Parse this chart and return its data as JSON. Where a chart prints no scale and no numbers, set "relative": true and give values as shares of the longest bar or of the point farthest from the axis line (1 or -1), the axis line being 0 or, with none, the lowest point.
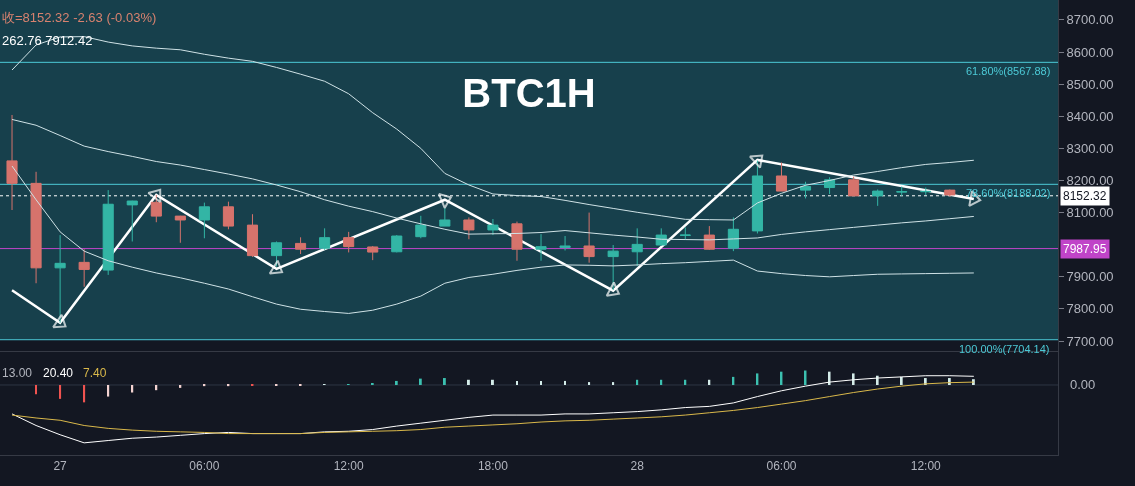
{
  "chart_data": [
    {
      "type": "candlestick",
      "title": "BTC1H",
      "annotations": [
        "收=8152.32 -2.63 (-0.03%)",
        "262.76 7912.42"
      ],
      "categories": [
        null,
        null,
        null,
        null,
        null,
        null,
        null,
        null,
        null,
        null,
        null,
        null,
        null,
        null,
        null,
        null,
        null,
        null,
        null,
        null,
        null,
        null,
        null,
        null,
        null,
        null,
        null,
        null,
        null,
        null,
        null,
        null,
        null,
        null,
        null,
        null,
        null,
        null,
        null,
        null,
        null,
        null,
        null,
        null
      ],
      "ohlc": [
        [
          8261,
          8404,
          8108,
          8191
        ],
        [
          8191,
          8227,
          7880,
          7928
        ],
        [
          7928,
          8030,
          7757,
          7942
        ],
        [
          7945,
          7986,
          7869,
          7923
        ],
        [
          7921,
          8170,
          7906,
          8126
        ],
        [
          8124,
          8137,
          8010,
          8136
        ],
        [
          8132,
          8155,
          8070,
          8089
        ],
        [
          8089,
          8090,
          8006,
          8077
        ],
        [
          8077,
          8131,
          8020,
          8118
        ],
        [
          8118,
          8134,
          8048,
          8058
        ],
        [
          8061,
          8095,
          7962,
          7966
        ],
        [
          7966,
          8010,
          7932,
          8006
        ],
        [
          8004,
          8023,
          7971,
          7986
        ],
        [
          7989,
          8051,
          7984,
          8022
        ],
        [
          8022,
          8040,
          7976,
          7994
        ],
        [
          7993,
          7996,
          7952,
          7977
        ],
        [
          7978,
          8030,
          7976,
          8027
        ],
        [
          8025,
          8090,
          8020,
          8061
        ],
        [
          8058,
          8115,
          8058,
          8077
        ],
        [
          8077,
          8085,
          8017,
          8046
        ],
        [
          8046,
          8080,
          8030,
          8061
        ],
        [
          8065,
          8072,
          7950,
          7986
        ],
        [
          7986,
          8033,
          7950,
          7994
        ],
        [
          7991,
          8027,
          7982,
          7996
        ],
        [
          7996,
          8100,
          7944,
          7963
        ],
        [
          7963,
          7999,
          7859,
          7980
        ],
        [
          7978,
          8051,
          7934,
          8001
        ],
        [
          7999,
          8051,
          7996,
          8030
        ],
        [
          8029,
          8054,
          8015,
          8030
        ],
        [
          8030,
          8058,
          7984,
          7986
        ],
        [
          7989,
          8085,
          7980,
          8048
        ],
        [
          8043,
          8262,
          8035,
          8214
        ],
        [
          8214,
          8256,
          8167,
          8167
        ],
        [
          8170,
          8196,
          8144,
          8181
        ],
        [
          8178,
          8210,
          8158,
          8202
        ],
        [
          8202,
          8212,
          8152,
          8152
        ],
        [
          8152,
          8172,
          8121,
          8167
        ],
        [
          8164,
          8181,
          8152,
          8165
        ],
        [
          8165,
          8178,
          8155,
          8166
        ],
        [
          8170,
          8172,
          8150,
          8155
        ],
        null,
        null,
        null,
        null
      ],
      "colors": [
        "#d6736c",
        "#d6736c",
        "#33b5a5",
        "#d6736c",
        "#33b5a5",
        "#33b5a5",
        "#d6736c",
        "#d6736c",
        "#33b5a5",
        "#d6736c",
        "#d6736c",
        "#33b5a5",
        "#d6736c",
        "#33b5a5",
        "#d6736c",
        "#d6736c",
        "#33b5a5",
        "#33b5a5",
        "#33b5a5",
        "#d6736c",
        "#33b5a5",
        "#d6736c",
        "#33b5a5",
        "#33b5a5",
        "#d6736c",
        "#33b5a5",
        "#33b5a5",
        "#33b5a5",
        "#33b5a5",
        "#d6736c",
        "#33b5a5",
        "#33b5a5",
        "#d6736c",
        "#33b5a5",
        "#33b5a5",
        "#d6736c",
        "#33b5a5",
        "#33b5a5",
        "#33b5a5",
        "#d6736c",
        null,
        null,
        null,
        null
      ],
      "series": [
        {
          "type": "line",
          "color": "#cfe2e6",
          "values": [
            8544,
            8622,
            8647,
            8648,
            8631,
            8619,
            8612,
            8607,
            8593,
            8581,
            8571,
            8552,
            8531,
            8509,
            8470,
            8411,
            8360,
            8300,
            8222,
            8186,
            8158,
            8153,
            8150,
            8138,
            8125,
            8113,
            8101,
            8090,
            8079,
            8078,
            8077,
            8130,
            8160,
            8185,
            8200,
            8217,
            8228,
            8240,
            8250,
            8256,
            8263,
            null,
            null,
            null
          ]
        },
        {
          "type": "line",
          "color": "#cfe2e6",
          "values": [
            8390,
            8372,
            8340,
            8307,
            8290,
            8275,
            8259,
            8248,
            8234,
            8220,
            8205,
            8186,
            8165,
            8140,
            8120,
            8103,
            8083,
            8065,
            8048,
            8033,
            8034,
            8035,
            8038,
            8044,
            8037,
            8030,
            8024,
            8017,
            8016,
            8015,
            8018,
            8021,
            8032,
            8040,
            8047,
            8054,
            8061,
            8068,
            8074,
            8081,
            8088,
            null,
            null,
            null
          ]
        },
        {
          "type": "line",
          "color": "#cfe2e6",
          "values": [
            8245,
            8140,
            8040,
            7980,
            7950,
            7930,
            7912,
            7897,
            7880,
            7862,
            7838,
            7815,
            7799,
            7792,
            7786,
            7796,
            7815,
            7840,
            7880,
            7898,
            7908,
            7920,
            7930,
            7937,
            7936,
            7934,
            7937,
            7941,
            7944,
            7948,
            7952,
            7918,
            7910,
            7904,
            7900,
            7904,
            7908,
            7909,
            7910,
            7911,
            7912,
            null,
            null,
            null
          ]
        },
        {
          "type": "line",
          "color": "#ffffff",
          "marker": "triangle",
          "values": [
            7858,
            null,
            7757,
            null,
            null,
            null,
            8155,
            null,
            null,
            null,
            null,
            7925,
            null,
            null,
            null,
            null,
            null,
            null,
            8140,
            null,
            null,
            null,
            null,
            null,
            null,
            7857,
            null,
            null,
            null,
            null,
            null,
            8264,
            null,
            null,
            null,
            null,
            null,
            null,
            null,
            null,
            8142,
            null,
            null,
            null
          ]
        }
      ],
      "ylim": [
        7669,
        8762
      ],
      "yticks": [
        {
          "value": 7700,
          "label": "7700.00"
        },
        {
          "value": 7800,
          "label": "7800.00"
        },
        {
          "value": 7900,
          "label": "7900.00"
        },
        7987.95,
        {
          "value": 8100,
          "label": "8100.00"
        },
        8152.32,
        {
          "value": 8200,
          "label": "8200.00"
        },
        {
          "value": 8300,
          "label": "8300.00"
        },
        {
          "value": 8400,
          "label": "8400.00"
        },
        {
          "value": 8500,
          "label": "8500.00"
        },
        {
          "value": 8600,
          "label": "8600.00"
        },
        {
          "value": 8700,
          "label": "8700.00"
        }
      ],
      "ref_lines": [
        {
          "axis": "y",
          "value": 8567.88,
          "label": "61.80%(8567.88)",
          "color": "#4cc9d6"
        },
        {
          "axis": "y",
          "value": 8188.02,
          "label": "78.60%(8188.02)",
          "color": "#4cc9d6"
        },
        {
          "axis": "y",
          "value": 7704.14,
          "label": "100.00%(7704.14)",
          "color": "#4cc9d6"
        },
        {
          "axis": "y",
          "value": 7987.95,
          "color": "#c044c8"
        },
        {
          "axis": "y",
          "value": 8152.32,
          "color": "#ffffff",
          "line_style": "dotted"
        }
      ],
      "bands": [
        {
          "axis": "y",
          "from": 7704.14,
          "to": 8762,
          "color": "#17404c"
        }
      ]
    },
    {
      "type": "bar",
      "relative": true,
      "annotations": [
        "13.00",
        "20.40",
        "7.40"
      ],
      "categories": [
        null,
        null,
        "27",
        null,
        null,
        null,
        null,
        null,
        "06:00",
        null,
        null,
        null,
        null,
        null,
        "12:00",
        null,
        null,
        null,
        null,
        null,
        "18:00",
        null,
        null,
        null,
        null,
        null,
        "28",
        null,
        null,
        null,
        null,
        null,
        "06:00",
        null,
        null,
        null,
        null,
        null,
        "12:00",
        null,
        null,
        null,
        null,
        null
      ],
      "series": [
        {
          "values": [
            null,
            -0.16,
            -0.24,
            -0.3,
            -0.2,
            -0.13,
            -0.09,
            -0.05,
            -0.02,
            -0.02,
            -0.01,
            -0.01,
            -0.01,
            0.01,
            0.01,
            0.02,
            0.07,
            0.11,
            0.12,
            0.09,
            0.09,
            0.07,
            0.07,
            0.07,
            0.05,
            0.05,
            0.09,
            0.09,
            0.09,
            0.09,
            0.14,
            0.2,
            0.23,
            0.25,
            0.23,
            0.2,
            0.16,
            0.14,
            0.12,
            0.12,
            0.1,
            null,
            null,
            null
          ],
          "colors": [
            null,
            "#ef5350",
            "#ef5350",
            "#ef5350",
            "#f4d3d1",
            "#f4d3d1",
            "#f4d3d1",
            "#f4d3d1",
            "#f4d3d1",
            "#f4d3d1",
            "#ef5350",
            "#f4d3d1",
            "#f4d3d1",
            "#d4ece9",
            "#3cc0b0",
            "#3cc0b0",
            "#3cc0b0",
            "#3cc0b0",
            "#3cc0b0",
            "#d4ece9",
            "#d4ece9",
            "#d4ece9",
            "#d4ece9",
            "#d4ece9",
            "#d4ece9",
            "#d4ece9",
            "#3cc0b0",
            "#3cc0b0",
            "#3cc0b0",
            "#d4ece9",
            "#3cc0b0",
            "#3cc0b0",
            "#3cc0b0",
            "#3cc0b0",
            "#d4ece9",
            "#d4ece9",
            "#d4ece9",
            "#d4ece9",
            "#d4ece9",
            "#d4ece9",
            "#d4ece9",
            null,
            null,
            null
          ]
        },
        {
          "type": "line",
          "color": "#ffffff",
          "values": [
            -0.5,
            -0.7,
            -0.86,
            -1,
            -0.96,
            -0.92,
            -0.9,
            -0.87,
            -0.84,
            -0.82,
            -0.84,
            -0.84,
            -0.84,
            -0.81,
            -0.8,
            -0.77,
            -0.71,
            -0.66,
            -0.61,
            -0.56,
            -0.52,
            -0.52,
            -0.52,
            -0.5,
            -0.5,
            -0.48,
            -0.46,
            -0.43,
            -0.39,
            -0.37,
            -0.31,
            -0.2,
            -0.1,
            -0.02,
            0.05,
            0.09,
            0.12,
            0.14,
            0.16,
            0.16,
            0.15,
            null,
            null,
            null
          ]
        },
        {
          "type": "line",
          "color": "#d9b84a",
          "values": [
            -0.52,
            -0.57,
            -0.61,
            -0.7,
            -0.75,
            -0.78,
            -0.8,
            -0.81,
            -0.82,
            -0.84,
            -0.84,
            -0.84,
            -0.84,
            -0.82,
            -0.81,
            -0.8,
            -0.79,
            -0.77,
            -0.73,
            -0.71,
            -0.69,
            -0.67,
            -0.64,
            -0.62,
            -0.61,
            -0.59,
            -0.57,
            -0.55,
            -0.52,
            -0.48,
            -0.44,
            -0.39,
            -0.33,
            -0.27,
            -0.2,
            -0.13,
            -0.07,
            -0.02,
            0.02,
            0.04,
            0.05,
            null,
            null,
            null
          ]
        }
      ],
      "ref_lines": [
        {
          "axis": "y",
          "value": 0,
          "label": "0.00",
          "color": "#2e3542"
        }
      ]
    }
  ]
}
